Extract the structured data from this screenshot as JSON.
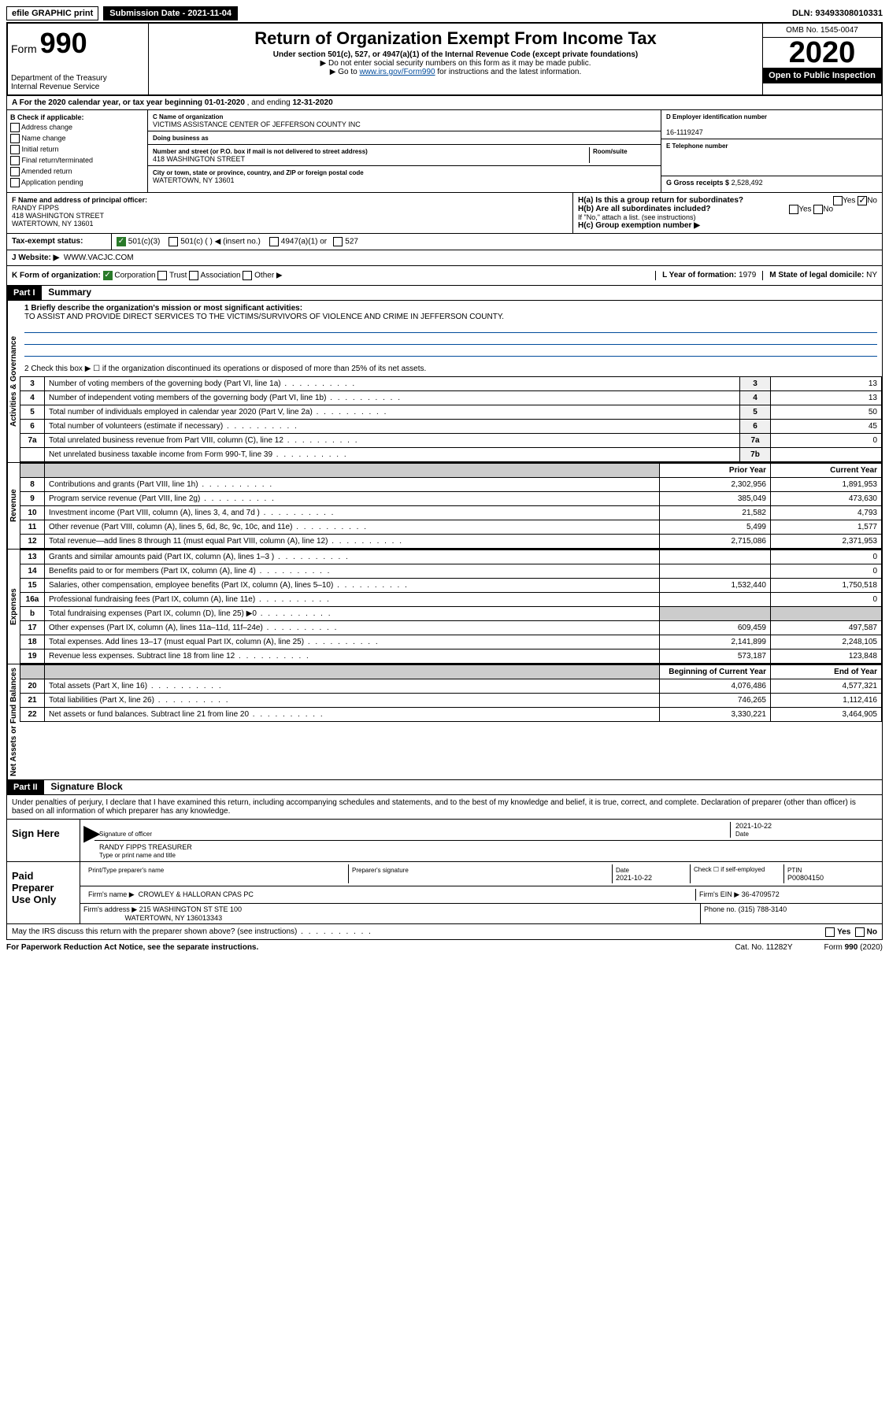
{
  "topbar": {
    "efile": "efile GRAPHIC print",
    "submission": "Submission Date - 2021-11-04",
    "dln": "DLN: 93493308010331"
  },
  "header": {
    "form_prefix": "Form",
    "form_number": "990",
    "title": "Return of Organization Exempt From Income Tax",
    "sub": "Under section 501(c), 527, or 4947(a)(1) of the Internal Revenue Code (except private foundations)",
    "note1": "▶ Do not enter social security numbers on this form as it may be made public.",
    "note2_prefix": "▶ Go to ",
    "note2_link": "www.irs.gov/Form990",
    "note2_suffix": " for instructions and the latest information.",
    "dept": "Department of the Treasury\nInternal Revenue Service",
    "omb": "OMB No. 1545-0047",
    "year": "2020",
    "open": "Open to Public Inspection"
  },
  "rowA": {
    "text_prefix": "A For the 2020 calendar year, or tax year beginning ",
    "begin": "01-01-2020",
    "mid": " , and ending ",
    "end": "12-31-2020"
  },
  "boxB": {
    "title": "B Check if applicable:",
    "items": [
      "Address change",
      "Name change",
      "Initial return",
      "Final return/terminated",
      "Amended return",
      "Application pending"
    ]
  },
  "boxC": {
    "name_lbl": "C Name of organization",
    "name": "VICTIMS ASSISTANCE CENTER OF JEFFERSON COUNTY INC",
    "dba_lbl": "Doing business as",
    "addr_lbl": "Number and street (or P.O. box if mail is not delivered to street address)",
    "room_lbl": "Room/suite",
    "addr": "418 WASHINGTON STREET",
    "city_lbl": "City or town, state or province, country, and ZIP or foreign postal code",
    "city": "WATERTOWN, NY  13601"
  },
  "boxD": {
    "lbl": "D Employer identification number",
    "val": "16-1119247",
    "e_lbl": "E Telephone number",
    "g_lbl": "G Gross receipts $",
    "g_val": "2,528,492"
  },
  "boxF": {
    "lbl": "F Name and address of principal officer:",
    "name": "RANDY FIPPS",
    "addr": "418 WASHINGTON STREET",
    "city": "WATERTOWN, NY  13601"
  },
  "boxH": {
    "a": "H(a) Is this a group return for subordinates?",
    "b": "H(b) Are all subordinates included?",
    "note": "If \"No,\" attach a list. (see instructions)",
    "c": "H(c) Group exemption number ▶",
    "yes": "Yes",
    "no": "No"
  },
  "boxI": {
    "lbl": "Tax-exempt status:",
    "opt1": "501(c)(3)",
    "opt2": "501(c) (  ) ◀ (insert no.)",
    "opt3": "4947(a)(1) or",
    "opt4": "527"
  },
  "boxJ": {
    "lbl": "J   Website: ▶",
    "val": "WWW.VACJC.COM"
  },
  "boxK": {
    "lbl": "K Form of organization:",
    "opts": [
      "Corporation",
      "Trust",
      "Association",
      "Other ▶"
    ],
    "l_lbl": "L Year of formation:",
    "l_val": "1979",
    "m_lbl": "M State of legal domicile:",
    "m_val": "NY"
  },
  "part1": {
    "label": "Part I",
    "title": "Summary",
    "q1_lbl": "1  Briefly describe the organization's mission or most significant activities:",
    "q1_val": "TO ASSIST AND PROVIDE DIRECT SERVICES TO THE VICTIMS/SURVIVORS OF VIOLENCE AND CRIME IN JEFFERSON COUNTY.",
    "q2": "2   Check this box ▶ ☐  if the organization discontinued its operations or disposed of more than 25% of its net assets.",
    "lines_gov": [
      {
        "n": "3",
        "t": "Number of voting members of the governing body (Part VI, line 1a)",
        "box": "3",
        "v": "13"
      },
      {
        "n": "4",
        "t": "Number of independent voting members of the governing body (Part VI, line 1b)",
        "box": "4",
        "v": "13"
      },
      {
        "n": "5",
        "t": "Total number of individuals employed in calendar year 2020 (Part V, line 2a)",
        "box": "5",
        "v": "50"
      },
      {
        "n": "6",
        "t": "Total number of volunteers (estimate if necessary)",
        "box": "6",
        "v": "45"
      },
      {
        "n": "7a",
        "t": "Total unrelated business revenue from Part VIII, column (C), line 12",
        "box": "7a",
        "v": "0"
      },
      {
        "n": "",
        "t": "Net unrelated business taxable income from Form 990-T, line 39",
        "box": "7b",
        "v": ""
      }
    ],
    "col_prior": "Prior Year",
    "col_current": "Current Year",
    "lines_rev": [
      {
        "n": "8",
        "t": "Contributions and grants (Part VIII, line 1h)",
        "p": "2,302,956",
        "c": "1,891,953"
      },
      {
        "n": "9",
        "t": "Program service revenue (Part VIII, line 2g)",
        "p": "385,049",
        "c": "473,630"
      },
      {
        "n": "10",
        "t": "Investment income (Part VIII, column (A), lines 3, 4, and 7d )",
        "p": "21,582",
        "c": "4,793"
      },
      {
        "n": "11",
        "t": "Other revenue (Part VIII, column (A), lines 5, 6d, 8c, 9c, 10c, and 11e)",
        "p": "5,499",
        "c": "1,577"
      },
      {
        "n": "12",
        "t": "Total revenue—add lines 8 through 11 (must equal Part VIII, column (A), line 12)",
        "p": "2,715,086",
        "c": "2,371,953"
      }
    ],
    "lines_exp": [
      {
        "n": "13",
        "t": "Grants and similar amounts paid (Part IX, column (A), lines 1–3 )",
        "p": "",
        "c": "0"
      },
      {
        "n": "14",
        "t": "Benefits paid to or for members (Part IX, column (A), line 4)",
        "p": "",
        "c": "0"
      },
      {
        "n": "15",
        "t": "Salaries, other compensation, employee benefits (Part IX, column (A), lines 5–10)",
        "p": "1,532,440",
        "c": "1,750,518"
      },
      {
        "n": "16a",
        "t": "Professional fundraising fees (Part IX, column (A), line 11e)",
        "p": "",
        "c": "0"
      },
      {
        "n": "b",
        "t": "Total fundraising expenses (Part IX, column (D), line 25) ▶0",
        "p": "grey",
        "c": "grey"
      },
      {
        "n": "17",
        "t": "Other expenses (Part IX, column (A), lines 11a–11d, 11f–24e)",
        "p": "609,459",
        "c": "497,587"
      },
      {
        "n": "18",
        "t": "Total expenses. Add lines 13–17 (must equal Part IX, column (A), line 25)",
        "p": "2,141,899",
        "c": "2,248,105"
      },
      {
        "n": "19",
        "t": "Revenue less expenses. Subtract line 18 from line 12",
        "p": "573,187",
        "c": "123,848"
      }
    ],
    "col_begin": "Beginning of Current Year",
    "col_end": "End of Year",
    "lines_net": [
      {
        "n": "20",
        "t": "Total assets (Part X, line 16)",
        "p": "4,076,486",
        "c": "4,577,321"
      },
      {
        "n": "21",
        "t": "Total liabilities (Part X, line 26)",
        "p": "746,265",
        "c": "1,112,416"
      },
      {
        "n": "22",
        "t": "Net assets or fund balances. Subtract line 21 from line 20",
        "p": "3,330,221",
        "c": "3,464,905"
      }
    ],
    "vlabels": {
      "gov": "Activities & Governance",
      "rev": "Revenue",
      "exp": "Expenses",
      "net": "Net Assets or Fund Balances"
    }
  },
  "part2": {
    "label": "Part II",
    "title": "Signature Block",
    "perjury": "Under penalties of perjury, I declare that I have examined this return, including accompanying schedules and statements, and to the best of my knowledge and belief, it is true, correct, and complete. Declaration of preparer (other than officer) is based on all information of which preparer has any knowledge.",
    "sign_here": "Sign Here",
    "sig_officer": "Signature of officer",
    "sig_date": "2021-10-22",
    "date_lbl": "Date",
    "sig_name": "RANDY FIPPS TREASURER",
    "sig_name_lbl": "Type or print name and title",
    "paid": "Paid Preparer Use Only",
    "prep_name_lbl": "Print/Type preparer's name",
    "prep_sig_lbl": "Preparer's signature",
    "prep_date": "2021-10-22",
    "check_lbl": "Check ☐ if self-employed",
    "ptin_lbl": "PTIN",
    "ptin": "P00804150",
    "firm_name_lbl": "Firm's name    ▶",
    "firm_name": "CROWLEY & HALLORAN CPAS PC",
    "firm_ein_lbl": "Firm's EIN ▶",
    "firm_ein": "36-4709572",
    "firm_addr_lbl": "Firm's address ▶",
    "firm_addr": "215 WASHINGTON ST STE 100",
    "firm_city": "WATERTOWN, NY  136013343",
    "phone_lbl": "Phone no.",
    "phone": "(315) 788-3140",
    "discuss": "May the IRS discuss this return with the preparer shown above? (see instructions)"
  },
  "footer": {
    "paperwork": "For Paperwork Reduction Act Notice, see the separate instructions.",
    "cat": "Cat. No. 11282Y",
    "form": "Form 990 (2020)"
  }
}
